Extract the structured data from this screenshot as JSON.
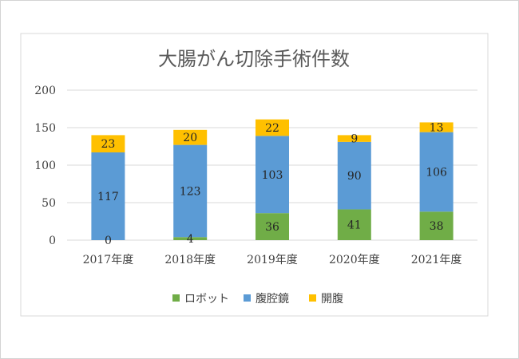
{
  "chart_data": {
    "type": "bar",
    "stacked": true,
    "title": "大腸がん切除手術件数",
    "categories": [
      "2017年度",
      "2018年度",
      "2019年度",
      "2020年度",
      "2021年度"
    ],
    "series": [
      {
        "name": "ロボット",
        "values": [
          0,
          4,
          36,
          41,
          38
        ],
        "color": "#70ad47"
      },
      {
        "name": "腹腔鏡",
        "values": [
          117,
          123,
          103,
          90,
          106
        ],
        "color": "#5b9bd5"
      },
      {
        "name": "開腹",
        "values": [
          23,
          20,
          22,
          9,
          13
        ],
        "color": "#ffc000"
      }
    ],
    "yticks": [
      "0",
      "50",
      "100",
      "150",
      "200"
    ],
    "ylim": [
      0,
      200
    ],
    "grid": true,
    "legend_position": "bottom"
  }
}
